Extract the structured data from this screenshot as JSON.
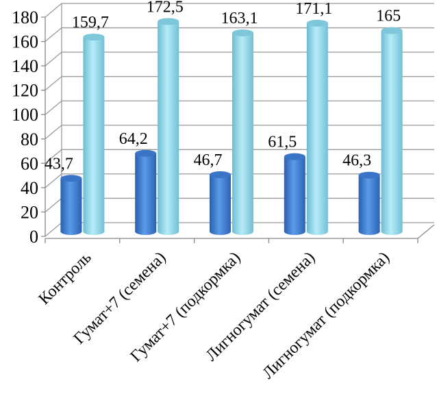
{
  "chart_data": {
    "type": "bar",
    "style": "3d-cylinder",
    "categories": [
      "Контроль",
      "Гумат+7 (семена)",
      "Гумат+7 (подкормка)",
      "Лигногумат (семена)",
      "Лигногумат (подкормка)"
    ],
    "series": [
      {
        "values": [
          43.7,
          64.2,
          46.7,
          61.5,
          46.3
        ],
        "labels": [
          "43,7",
          "64,2",
          "46,7",
          "61,5",
          "46,3"
        ],
        "color": "#3f7fd6"
      },
      {
        "values": [
          159.7,
          172.5,
          163.1,
          171.1,
          165
        ],
        "labels": [
          "159,7",
          "172,5",
          "163,1",
          "171,1",
          "165"
        ],
        "color": "#8fd4e6"
      }
    ],
    "yticks": [
      "0",
      "20",
      "40",
      "60",
      "80",
      "100",
      "120",
      "140",
      "160",
      "180"
    ],
    "ylim": [
      0,
      180
    ],
    "grid": true,
    "legend": "none"
  }
}
